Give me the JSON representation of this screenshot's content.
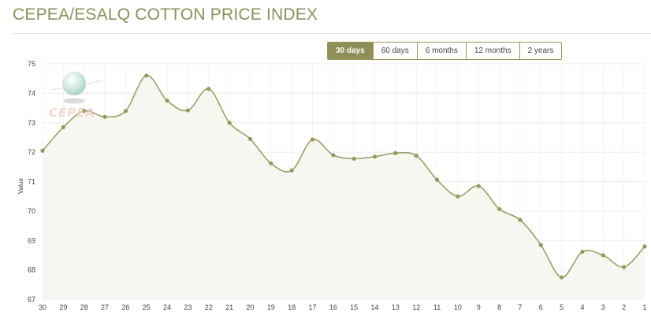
{
  "header": {
    "title": "CEPEA/ESALQ COTTON PRICE INDEX"
  },
  "range_buttons": [
    {
      "label": "30 days",
      "active": true
    },
    {
      "label": "60 days",
      "active": false
    },
    {
      "label": "6 months",
      "active": false
    },
    {
      "label": "12 months",
      "active": false
    },
    {
      "label": "2 years",
      "active": false
    }
  ],
  "logo": {
    "text": "CEPEA"
  },
  "colors": {
    "accent": "#8e8f55",
    "line": "#9a9856",
    "fill": "#f7f7f2",
    "grid": "#ececec"
  },
  "chart_data": {
    "type": "area",
    "title": "",
    "xlabel": "",
    "ylabel": "Value",
    "ylim": [
      67,
      75
    ],
    "yticks": [
      67,
      68,
      69,
      70,
      71,
      72,
      73,
      74,
      75
    ],
    "grid": true,
    "categories": [
      "30",
      "29",
      "28",
      "27",
      "26",
      "25",
      "24",
      "23",
      "22",
      "21",
      "20",
      "19",
      "18",
      "17",
      "16",
      "15",
      "14",
      "13",
      "12",
      "11",
      "10",
      "9",
      "8",
      "7",
      "6",
      "5",
      "4",
      "3",
      "2",
      "1"
    ],
    "series": [
      {
        "values": [
          72.05,
          72.85,
          73.4,
          73.2,
          73.4,
          74.6,
          73.75,
          73.42,
          74.15,
          73.0,
          72.45,
          71.62,
          71.38,
          72.43,
          71.9,
          71.78,
          71.85,
          71.97,
          71.88,
          71.06,
          70.5,
          70.85,
          70.07,
          69.7,
          68.85,
          67.75,
          68.62,
          68.5,
          68.1,
          68.8
        ]
      }
    ]
  }
}
